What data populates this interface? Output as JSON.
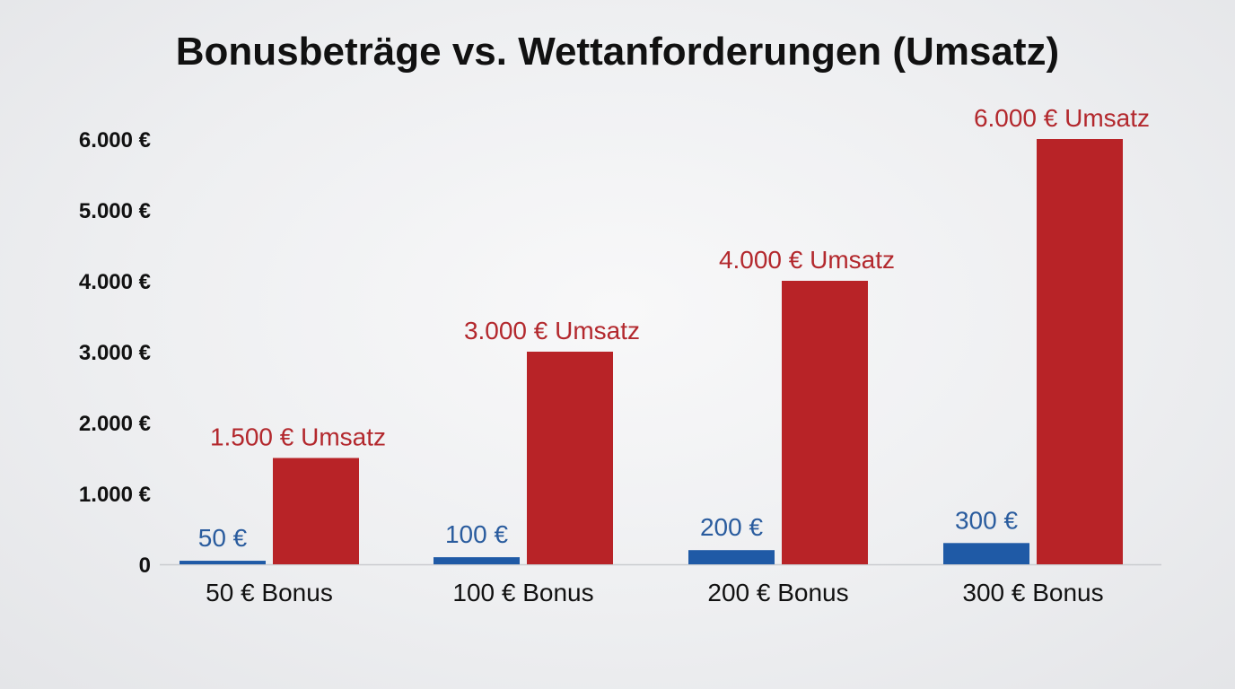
{
  "chart_data": {
    "type": "bar",
    "title": "Bonusbeträge vs. Wettanforderungen (Umsatz)",
    "xlabel": "",
    "ylabel": "",
    "categories": [
      "50 € Bonus",
      "100 € Bonus",
      "200 € Bonus",
      "300 € Bonus"
    ],
    "series": [
      {
        "values": [
          50,
          100,
          200,
          300
        ],
        "labels": [
          "50 €",
          "100 €",
          "200 €",
          "300 €"
        ],
        "color": "#1f5aa6"
      },
      {
        "values": [
          1500,
          3000,
          4000,
          6000
        ],
        "labels": [
          "1.500 € Umsatz",
          "3.000 € Umsatz",
          "4.000 € Umsatz",
          "6.000 € Umsatz"
        ],
        "color": "#b82327"
      }
    ],
    "ylim": [
      0,
      6000
    ],
    "yticks": [
      {
        "value": 0,
        "label": "0"
      },
      {
        "value": 1000,
        "label": "1.000 €"
      },
      {
        "value": 2000,
        "label": "2.000 €"
      },
      {
        "value": 3000,
        "label": "3.000 €"
      },
      {
        "value": 4000,
        "label": "4.000 €"
      },
      {
        "value": 5000,
        "label": "5.000 €"
      },
      {
        "value": 6000,
        "label": "6.000 €"
      }
    ],
    "grid": false,
    "legend": "none",
    "label_colors": {
      "bonus": "#2a5c9e",
      "umsatz": "#b3282d"
    },
    "axis_color": "#c9cbcf"
  }
}
